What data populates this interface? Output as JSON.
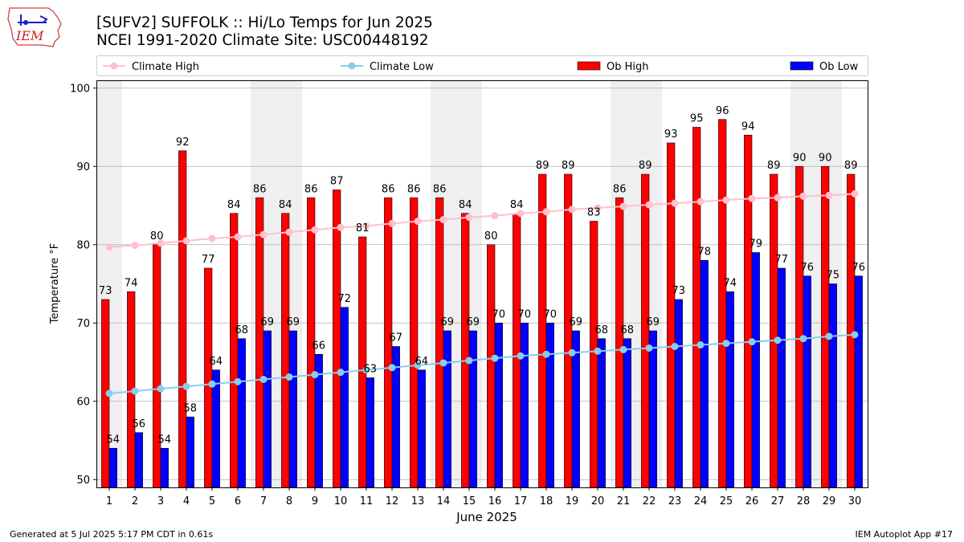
{
  "header": {
    "title_line1": "[SUFV2] SUFFOLK :: Hi/Lo Temps for Jun 2025",
    "title_line2": "NCEI 1991-2020 Climate Site: USC00448192",
    "logo_text": "IEM"
  },
  "footer": {
    "generated": "Generated at 5 Jul 2025 5:17 PM CDT in 0.61s",
    "app": "IEM Autoplot App #17"
  },
  "colors": {
    "ob_high": "#ff0000",
    "ob_low": "#0000ff",
    "climate_high": "#ffc0cb",
    "climate_low": "#87ceeb",
    "weekend_band": "#efefef",
    "grid": "#b0b0b0"
  },
  "chart_data": {
    "type": "bar",
    "xlabel": "June 2025",
    "ylabel": "Temperature °F",
    "ylim": [
      49,
      101
    ],
    "yticks": [
      50,
      60,
      70,
      80,
      90,
      100
    ],
    "grid": "horizontal",
    "legend_position": "top",
    "categories": [
      "1",
      "2",
      "3",
      "4",
      "5",
      "6",
      "7",
      "8",
      "9",
      "10",
      "11",
      "12",
      "13",
      "14",
      "15",
      "16",
      "17",
      "18",
      "19",
      "20",
      "21",
      "22",
      "23",
      "24",
      "25",
      "26",
      "27",
      "28",
      "29",
      "30"
    ],
    "shaded_day_ranges": [
      [
        1,
        1
      ],
      [
        7,
        8
      ],
      [
        14,
        15
      ],
      [
        21,
        22
      ],
      [
        28,
        29
      ]
    ],
    "series": [
      {
        "name": "Ob High",
        "kind": "bar",
        "values": [
          73,
          74,
          80,
          92,
          77,
          84,
          86,
          84,
          86,
          87,
          81,
          86,
          86,
          86,
          84,
          80,
          84,
          89,
          89,
          83,
          86,
          89,
          93,
          95,
          96,
          94,
          89,
          90,
          90,
          89
        ]
      },
      {
        "name": "Ob Low",
        "kind": "bar",
        "values": [
          54,
          56,
          54,
          58,
          64,
          68,
          69,
          69,
          66,
          72,
          63,
          67,
          64,
          69,
          69,
          70,
          70,
          70,
          69,
          68,
          68,
          69,
          73,
          78,
          74,
          79,
          77,
          76,
          75,
          76
        ]
      },
      {
        "name": "Climate High",
        "kind": "line",
        "values": [
          79.7,
          79.9,
          80.2,
          80.5,
          80.8,
          81.0,
          81.3,
          81.6,
          81.9,
          82.2,
          82.4,
          82.7,
          83.0,
          83.2,
          83.5,
          83.7,
          84.0,
          84.2,
          84.5,
          84.7,
          84.9,
          85.1,
          85.3,
          85.5,
          85.7,
          85.9,
          86.0,
          86.2,
          86.3,
          86.5
        ]
      },
      {
        "name": "Climate Low",
        "kind": "line",
        "values": [
          61.0,
          61.3,
          61.6,
          61.9,
          62.2,
          62.5,
          62.8,
          63.1,
          63.4,
          63.7,
          64.0,
          64.3,
          64.6,
          64.9,
          65.2,
          65.5,
          65.8,
          66.0,
          66.2,
          66.4,
          66.6,
          66.8,
          67.0,
          67.2,
          67.4,
          67.6,
          67.8,
          68.0,
          68.3,
          68.5
        ]
      }
    ]
  }
}
